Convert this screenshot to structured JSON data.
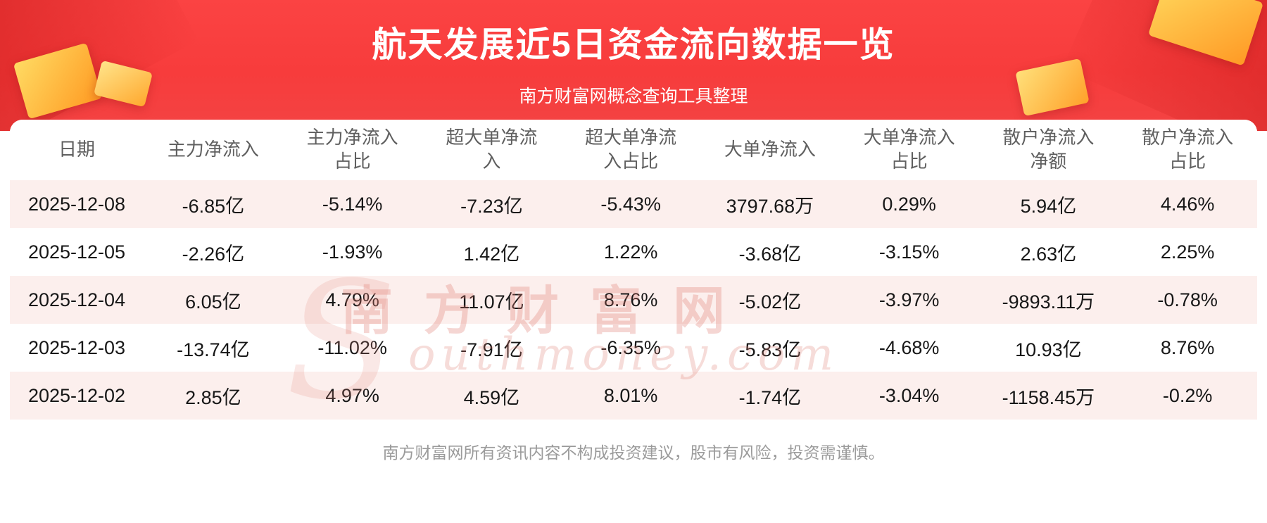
{
  "banner": {
    "title": "航天发展近5日资金流向数据一览",
    "subtitle": "南方财富网概念查询工具整理"
  },
  "theme": {
    "banner_red": "#f83f3f",
    "gift_gold": "#ffb83a",
    "row_stripe": "#fcefed",
    "header_text": "#5f5f5f",
    "cell_text": "#171717",
    "footer_text": "#9b9b9b"
  },
  "chart_data": {
    "type": "table",
    "title": "航天发展近5日资金流向数据一览",
    "columns": [
      "日期",
      "主力净流入",
      "主力净流入占比",
      "超大单净流入",
      "超大单净流入占比",
      "大单净流入",
      "大单净流入占比",
      "散户净流入净额",
      "散户净流入占比"
    ],
    "rows": [
      [
        "2025-12-08",
        "-6.85亿",
        "-5.14%",
        "-7.23亿",
        "-5.43%",
        "3797.68万",
        "0.29%",
        "5.94亿",
        "4.46%"
      ],
      [
        "2025-12-05",
        "-2.26亿",
        "-1.93%",
        "1.42亿",
        "1.22%",
        "-3.68亿",
        "-3.15%",
        "2.63亿",
        "2.25%"
      ],
      [
        "2025-12-04",
        "6.05亿",
        "4.79%",
        "11.07亿",
        "8.76%",
        "-5.02亿",
        "-3.97%",
        "-9893.11万",
        "-0.78%"
      ],
      [
        "2025-12-03",
        "-13.74亿",
        "-11.02%",
        "-7.91亿",
        "-6.35%",
        "-5.83亿",
        "-4.68%",
        "10.93亿",
        "8.76%"
      ],
      [
        "2025-12-02",
        "2.85亿",
        "4.97%",
        "4.59亿",
        "8.01%",
        "-1.74亿",
        "-3.04%",
        "-1158.45万",
        "-0.2%"
      ]
    ]
  },
  "watermark": {
    "cn": "南方财富网",
    "en_initial": "S",
    "en_rest": "outhmoney.com"
  },
  "footer": {
    "disclaimer": "南方财富网所有资讯内容不构成投资建议，股市有风险，投资需谨慎。"
  }
}
